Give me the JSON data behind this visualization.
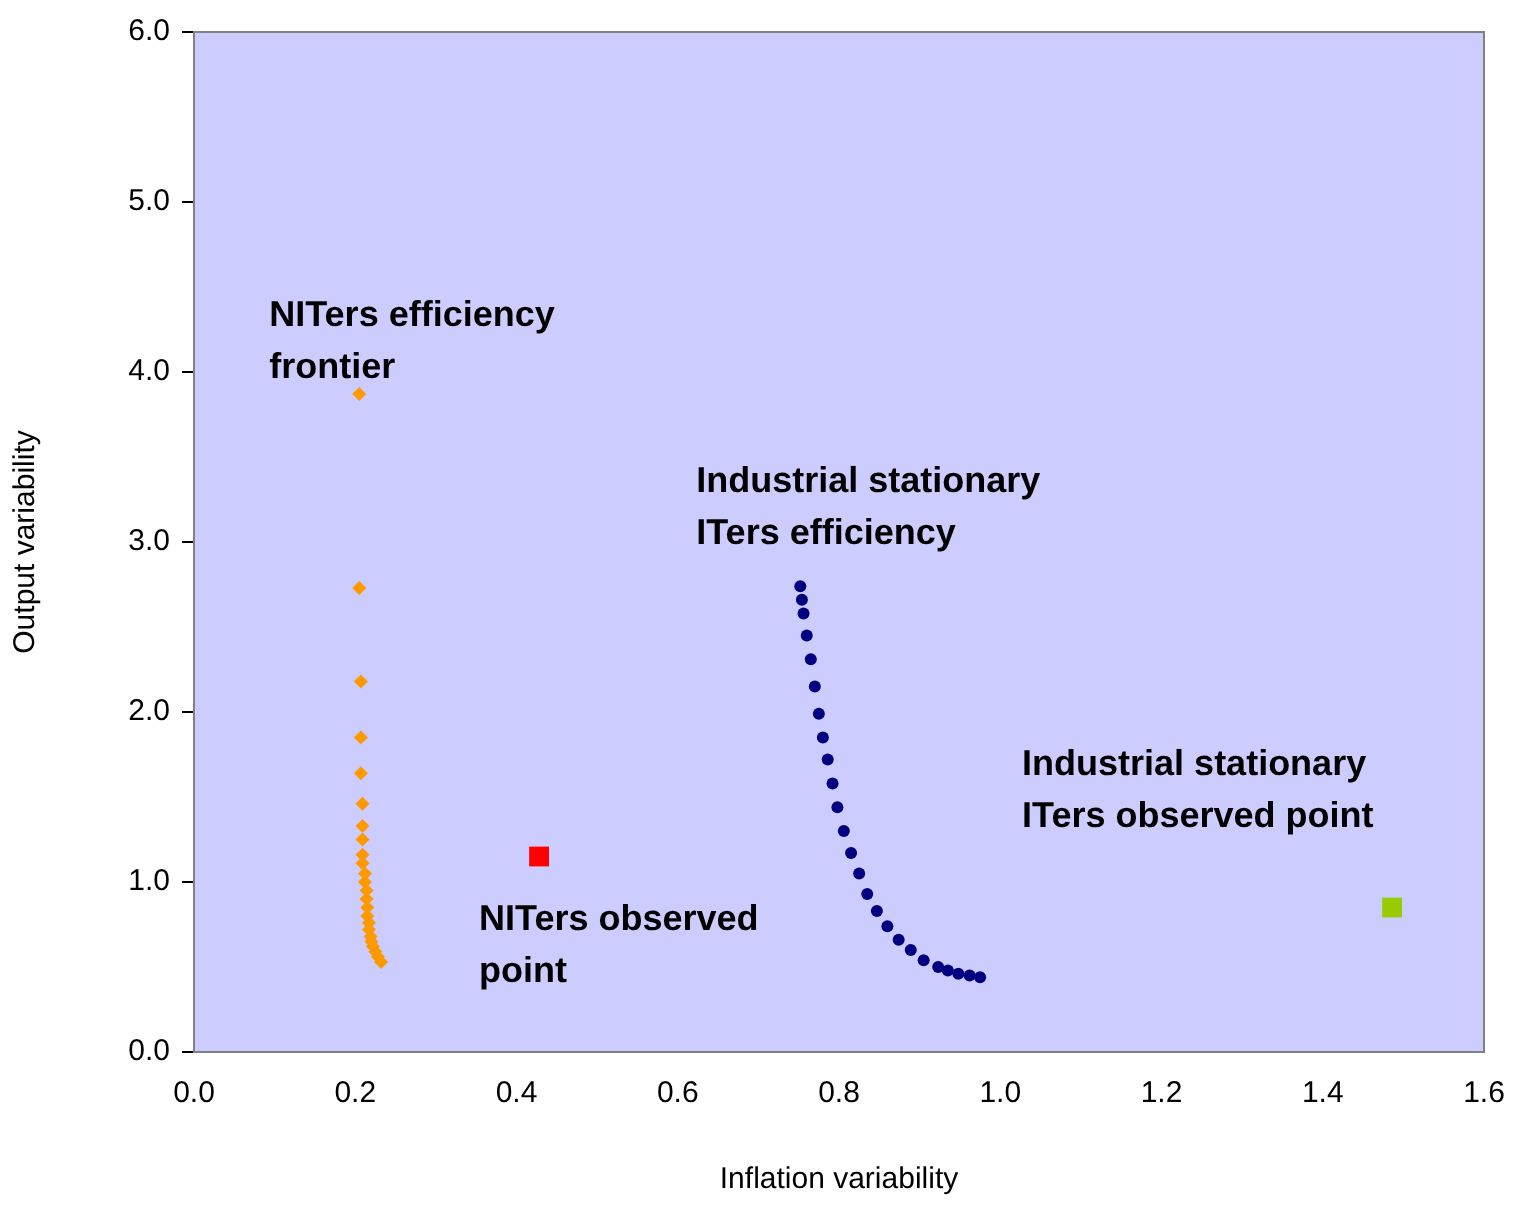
{
  "chart_data": {
    "type": "scatter",
    "xlabel": "Inflation variability",
    "ylabel": "Output variability",
    "xlim": [
      0,
      1.6
    ],
    "ylim": [
      0,
      6
    ],
    "xticks": [
      {
        "value": 0,
        "label": "0.0"
      },
      {
        "value": 0.2,
        "label": "0.2"
      },
      {
        "value": 0.4,
        "label": "0.4"
      },
      {
        "value": 0.6,
        "label": "0.6"
      },
      {
        "value": 0.8,
        "label": "0.8"
      },
      {
        "value": 1,
        "label": "1.0"
      },
      {
        "value": 1.2,
        "label": "1.2"
      },
      {
        "value": 1.4,
        "label": "1.4"
      },
      {
        "value": 1.6,
        "label": "1.6"
      }
    ],
    "yticks": [
      {
        "value": 0,
        "label": "0.0"
      },
      {
        "value": 1,
        "label": "1.0"
      },
      {
        "value": 2,
        "label": "2.0"
      },
      {
        "value": 3,
        "label": "3.0"
      },
      {
        "value": 4,
        "label": "4.0"
      },
      {
        "value": 5,
        "label": "5.0"
      },
      {
        "value": 6,
        "label": "6.0"
      }
    ],
    "grid": false,
    "legend": false,
    "series": [
      {
        "name": "NITers efficiency\nfrontier",
        "color": "#ff9900",
        "marker": "diamond",
        "x": [
          0.205,
          0.205,
          0.207,
          0.207,
          0.207,
          0.209,
          0.209,
          0.209,
          0.209,
          0.209,
          0.212,
          0.212,
          0.214,
          0.214,
          0.215,
          0.215,
          0.217,
          0.217,
          0.219,
          0.22,
          0.222,
          0.225,
          0.228,
          0.232
        ],
        "values": [
          3.87,
          2.73,
          2.18,
          1.85,
          1.64,
          1.46,
          1.33,
          1.25,
          1.16,
          1.11,
          1.05,
          1.0,
          0.95,
          0.9,
          0.85,
          0.8,
          0.76,
          0.72,
          0.68,
          0.65,
          0.62,
          0.59,
          0.56,
          0.53
        ]
      },
      {
        "name": "Industrial stationary\nITers efficiency",
        "color": "#000080",
        "marker": "circle",
        "x": [
          0.752,
          0.754,
          0.756,
          0.76,
          0.765,
          0.77,
          0.775,
          0.78,
          0.786,
          0.792,
          0.798,
          0.806,
          0.815,
          0.825,
          0.835,
          0.847,
          0.86,
          0.874,
          0.889,
          0.905,
          0.923,
          0.935,
          0.948,
          0.962,
          0.975
        ],
        "values": [
          2.74,
          2.66,
          2.58,
          2.45,
          2.31,
          2.15,
          1.99,
          1.85,
          1.72,
          1.58,
          1.44,
          1.3,
          1.17,
          1.05,
          0.93,
          0.83,
          0.74,
          0.66,
          0.6,
          0.54,
          0.5,
          0.48,
          0.46,
          0.45,
          0.44
        ]
      },
      {
        "name": "NITers observed\npoint",
        "color": "#ff0000",
        "marker": "square",
        "x": [
          0.428
        ],
        "values": [
          1.15
        ]
      },
      {
        "name": "Industrial stationary\nITers observed point",
        "color": "#99cc00",
        "marker": "square",
        "x": [
          1.486
        ],
        "values": [
          0.85
        ]
      }
    ]
  }
}
